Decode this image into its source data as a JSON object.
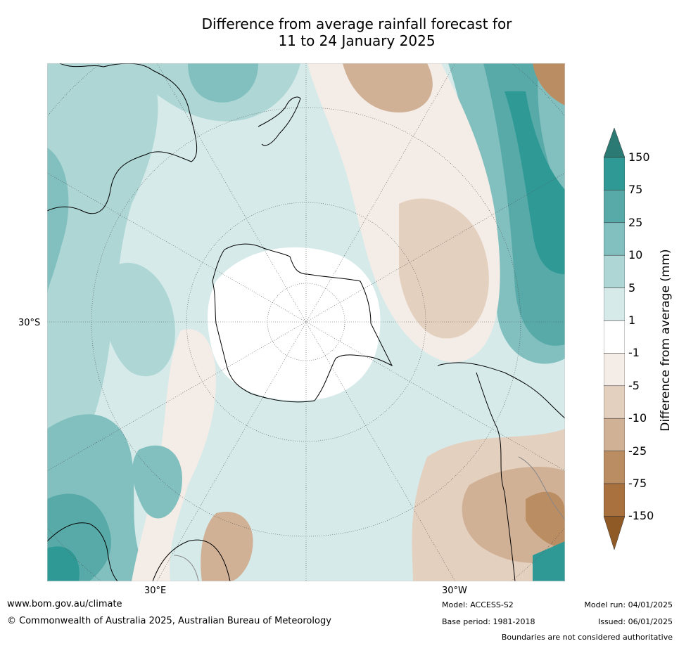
{
  "title_line1": "Difference from average rainfall forecast for",
  "title_line2": "11 to 24 January 2025",
  "axis_labels": {
    "lat_left": "30°S",
    "lon_bottom_left": "30°E",
    "lon_bottom_right": "30°W"
  },
  "colorbar": {
    "title": "Difference from average (mm)",
    "ticks": [
      "150",
      "75",
      "25",
      "10",
      "5",
      "1",
      "-1",
      "-5",
      "-10",
      "-25",
      "-75",
      "-150"
    ],
    "colors": [
      "#2c7a74",
      "#2f9a95",
      "#58aaa8",
      "#81c0bf",
      "#add6d5",
      "#d6eaea",
      "#ffffff",
      "#f4ece6",
      "#e4d0bf",
      "#d1b196",
      "#bb8d63",
      "#a8713e",
      "#905a26"
    ]
  },
  "map": {
    "projection": "south polar stereographic",
    "region": "Southern Hemisphere"
  },
  "footer": {
    "url": "www.bom.gov.au/climate",
    "copyright": "© Commonwealth of Australia 2025, Australian Bureau of Meteorology",
    "model": "Model: ACCESS-S2",
    "base_period": "Base period: 1981-2018",
    "model_run": "Model run: 04/01/2025",
    "issued": "Issued: 06/01/2025",
    "disclaimer": "Boundaries are not considered authoritative"
  }
}
